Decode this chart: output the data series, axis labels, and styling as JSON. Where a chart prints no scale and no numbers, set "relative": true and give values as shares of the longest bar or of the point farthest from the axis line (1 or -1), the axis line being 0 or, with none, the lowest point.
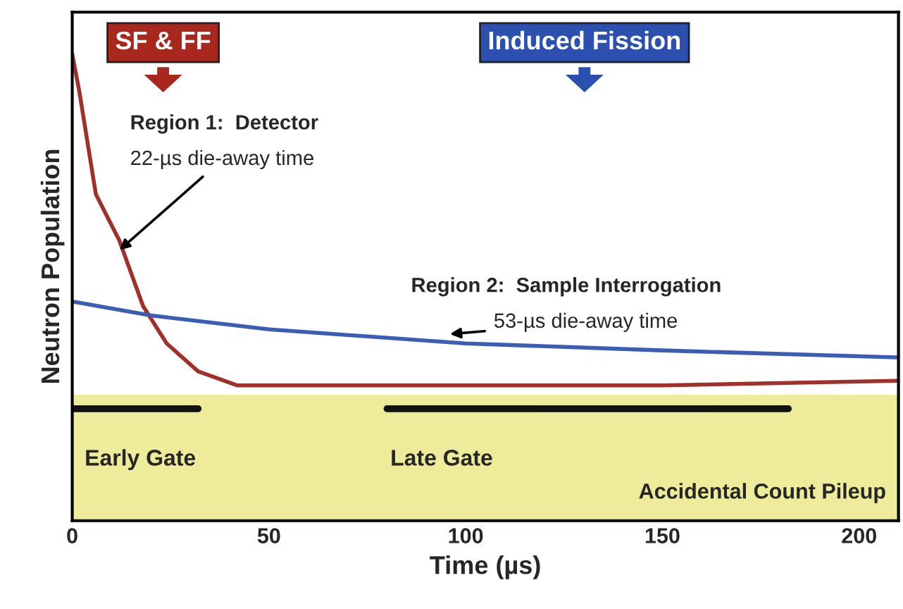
{
  "chart_data": {
    "type": "line",
    "relative": true,
    "xlabel": "Time (µs)",
    "ylabel": "Neutron Population",
    "xlim": [
      0,
      210
    ],
    "xticks": [
      0,
      50,
      100,
      150,
      200
    ],
    "grid": false,
    "legend": false,
    "series": [
      {
        "color": "#a0302a",
        "x": [
          0,
          1.8,
          6,
          12,
          18,
          24,
          32,
          42,
          60,
          100,
          150,
          210
        ],
        "values": [
          1.0,
          0.92,
          0.7,
          0.6,
          0.46,
          0.38,
          0.32,
          0.29,
          0.29,
          0.29,
          0.29,
          0.3
        ]
      },
      {
        "color": "#3b5db3",
        "x": [
          0,
          20,
          50,
          100,
          150,
          210
        ],
        "values": [
          0.47,
          0.44,
          0.41,
          0.38,
          0.365,
          0.35
        ]
      },
      {
        "color": "#111111",
        "x": [
          0,
          32
        ],
        "values": [
          0.24,
          0.24
        ]
      },
      {
        "color": "#111111",
        "x": [
          80,
          182
        ],
        "values": [
          0.24,
          0.24
        ]
      }
    ],
    "bands": [
      {
        "axis": "y",
        "from": 0,
        "to": 0.27,
        "label": "Accidental Count Pileup",
        "color": "#eeec9a"
      }
    ],
    "annotations": [
      "SF & FF",
      "Induced Fission",
      "Region 1:  Detector",
      {
        "text": "22-µs die-away time",
        "x": 12,
        "y": 0.58
      },
      "Region 2:  Sample Interrogation",
      {
        "text": "53-µs die-away time",
        "x": 96,
        "y": 0.4
      },
      "Early Gate",
      "Late Gate"
    ]
  }
}
